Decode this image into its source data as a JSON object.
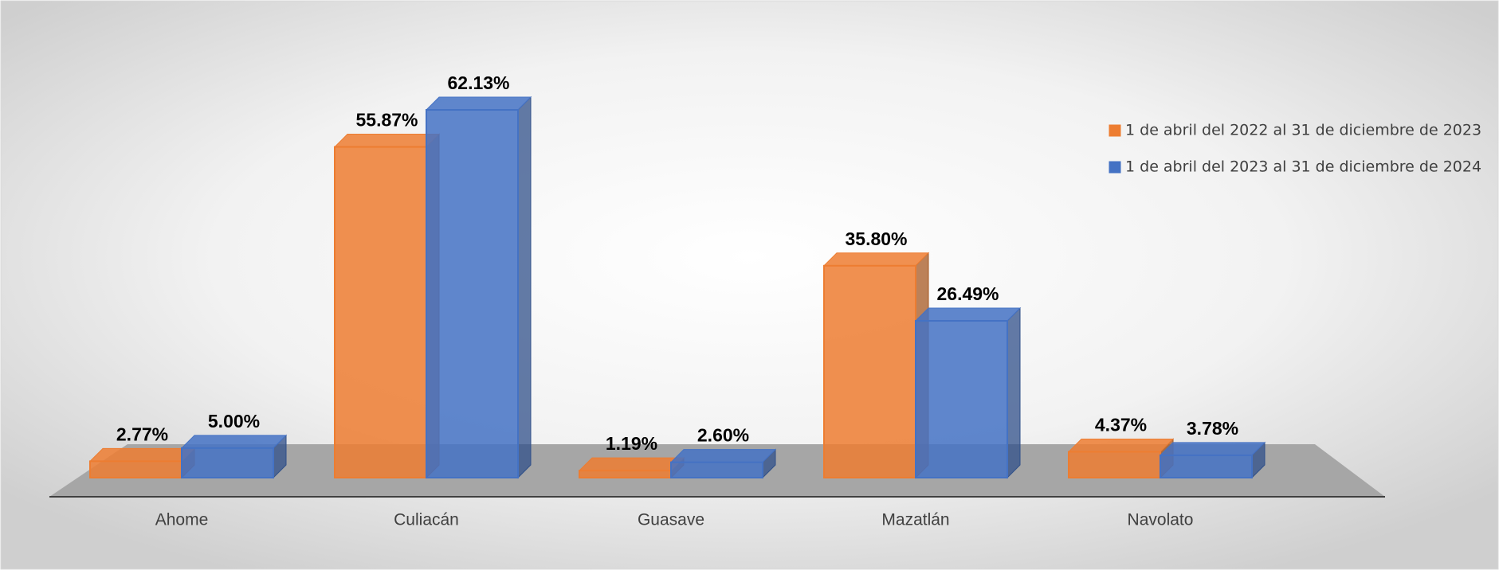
{
  "chart_data": {
    "type": "bar3d",
    "categories": [
      "Ahome",
      "Culiacán",
      "Guasave",
      "Mazatlán",
      "Navolato"
    ],
    "series": [
      {
        "name": "1 de abril del 2022 al 31 de diciembre de 2023",
        "color": "#ed7d31",
        "values": [
          2.77,
          55.87,
          1.19,
          35.8,
          4.37
        ],
        "value_labels": [
          "2.77%",
          "55.87%",
          "1.19%",
          "35.80%",
          "4.37%"
        ]
      },
      {
        "name": "1 de abril del 2023 al 31 de diciembre de 2024",
        "color": "#4472c4",
        "values": [
          5.0,
          62.13,
          2.6,
          26.49,
          3.78
        ],
        "value_labels": [
          "5.00%",
          "62.13%",
          "2.60%",
          "26.49%",
          "3.78%"
        ]
      }
    ],
    "legend": "right"
  }
}
